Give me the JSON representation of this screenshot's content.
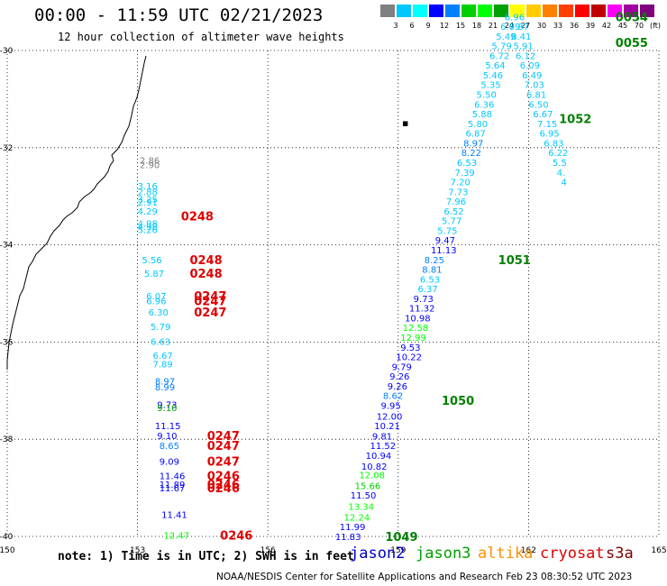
{
  "header": {
    "title": "00:00 - 11:59 UTC 02/21/2023",
    "subtitle": "12 hour collection of altimeter wave heights"
  },
  "colorbar": {
    "labels": [
      "3",
      "6",
      "9",
      "12",
      "15",
      "18",
      "21",
      "24",
      "27",
      "30",
      "33",
      "36",
      "39",
      "42",
      "45",
      "70",
      "(ft)"
    ],
    "colors": [
      "#808080",
      "#00c8ff",
      "#00ffff",
      "#0000ff",
      "#0080ff",
      "#00d000",
      "#00ff00",
      "#00a000",
      "#ffff00",
      "#ffcc00",
      "#ff8000",
      "#ff4000",
      "#ff0000",
      "#c00000",
      "#ff00ff",
      "#a000a0",
      "#800080"
    ]
  },
  "map": {
    "lon_ticks": [
      "150",
      "153",
      "156",
      "159",
      "162",
      "165"
    ],
    "lat_ticks": [
      "-30",
      "-32",
      "-34",
      "-36",
      "-38",
      "-40"
    ]
  },
  "chart_data": {
    "type": "scatter",
    "title": "00:00 - 11:59 UTC 02/21/2023",
    "subtitle": "12 hour collection of altimeter wave heights",
    "xlim": [
      150,
      165
    ],
    "ylim": [
      -40,
      -30
    ],
    "units": "(ft)",
    "points": [
      {
        "lon": 153.05,
        "lat": -32.25,
        "v": "2.86",
        "c": "#808080"
      },
      {
        "lon": 153.05,
        "lat": -32.35,
        "v": "2.90",
        "c": "#808080"
      },
      {
        "lon": 153.0,
        "lat": -32.78,
        "v": "3.16",
        "c": "#00c8ff"
      },
      {
        "lon": 153.0,
        "lat": -32.9,
        "v": "2.88",
        "c": "#00c8ff"
      },
      {
        "lon": 153.0,
        "lat": -33.05,
        "v": "3.25",
        "c": "#00c8ff"
      },
      {
        "lon": 153.0,
        "lat": -33.12,
        "v": "2.91",
        "c": "#00c8ff"
      },
      {
        "lon": 153.0,
        "lat": -33.3,
        "v": "4.29",
        "c": "#00c8ff"
      },
      {
        "lon": 153.0,
        "lat": -33.55,
        "v": "4.98",
        "c": "#00c8ff"
      },
      {
        "lon": 153.0,
        "lat": -33.62,
        "v": "4.98",
        "c": "#00c8ff"
      },
      {
        "lon": 153.0,
        "lat": -33.68,
        "v": "5.26",
        "c": "#00c8ff"
      },
      {
        "lon": 153.1,
        "lat": -34.3,
        "v": "5.56",
        "c": "#00c8ff"
      },
      {
        "lon": 153.15,
        "lat": -34.58,
        "v": "5.87",
        "c": "#00c8ff"
      },
      {
        "lon": 153.2,
        "lat": -35.05,
        "v": "6.07",
        "c": "#00c8ff"
      },
      {
        "lon": 153.2,
        "lat": -35.15,
        "v": "6.96",
        "c": "#00c8ff"
      },
      {
        "lon": 153.25,
        "lat": -35.38,
        "v": "6.30",
        "c": "#00c8ff"
      },
      {
        "lon": 153.3,
        "lat": -35.68,
        "v": "5.79",
        "c": "#00c8ff"
      },
      {
        "lon": 153.3,
        "lat": -35.98,
        "v": "6.63",
        "c": "#00c8ff"
      },
      {
        "lon": 153.35,
        "lat": -36.27,
        "v": "6.67",
        "c": "#00c8ff"
      },
      {
        "lon": 153.35,
        "lat": -36.45,
        "v": "7.89",
        "c": "#00c8ff"
      },
      {
        "lon": 153.4,
        "lat": -36.8,
        "v": "8.97",
        "c": "#0080ff"
      },
      {
        "lon": 153.4,
        "lat": -36.92,
        "v": "8.99",
        "c": "#0080ff"
      },
      {
        "lon": 153.45,
        "lat": -37.28,
        "v": "9.73",
        "c": "#0000ff"
      },
      {
        "lon": 153.45,
        "lat": -37.35,
        "v": "9.10",
        "c": "#00a000"
      },
      {
        "lon": 153.4,
        "lat": -37.72,
        "v": "11.15",
        "c": "#0000ff"
      },
      {
        "lon": 153.45,
        "lat": -37.92,
        "v": "9.10",
        "c": "#0000ff"
      },
      {
        "lon": 153.5,
        "lat": -38.13,
        "v": "8.65",
        "c": "#0080ff"
      },
      {
        "lon": 153.5,
        "lat": -38.45,
        "v": "9.09",
        "c": "#0000ff"
      },
      {
        "lon": 153.5,
        "lat": -38.75,
        "v": "11.46",
        "c": "#0000ff"
      },
      {
        "lon": 153.5,
        "lat": -38.92,
        "v": "11.89",
        "c": "#0000ff"
      },
      {
        "lon": 153.5,
        "lat": -39.0,
        "v": "11.67",
        "c": "#0000ff"
      },
      {
        "lon": 153.55,
        "lat": -39.55,
        "v": "11.41",
        "c": "#0000ff"
      },
      {
        "lon": 153.6,
        "lat": -39.97,
        "v": "12.47",
        "c": "#00ff00"
      },
      {
        "lon": 157.55,
        "lat": -40.0,
        "v": "11.83",
        "c": "#0000ff"
      },
      {
        "lon": 157.65,
        "lat": -39.8,
        "v": "11.99",
        "c": "#0000ff"
      },
      {
        "lon": 157.75,
        "lat": -39.6,
        "v": "12.24",
        "c": "#00ff00"
      },
      {
        "lon": 157.85,
        "lat": -39.38,
        "v": "13.34",
        "c": "#00ff00"
      },
      {
        "lon": 157.9,
        "lat": -39.15,
        "v": "11.50",
        "c": "#0000ff"
      },
      {
        "lon": 158.0,
        "lat": -38.95,
        "v": "15.66",
        "c": "#00d000"
      },
      {
        "lon": 158.1,
        "lat": -38.73,
        "v": "12.08",
        "c": "#00ff00"
      },
      {
        "lon": 158.15,
        "lat": -38.55,
        "v": "10.82",
        "c": "#0000ff"
      },
      {
        "lon": 158.25,
        "lat": -38.33,
        "v": "10.94",
        "c": "#0000ff"
      },
      {
        "lon": 158.35,
        "lat": -38.13,
        "v": "11.52",
        "c": "#0000ff"
      },
      {
        "lon": 158.4,
        "lat": -37.93,
        "v": "9.81",
        "c": "#0000ff"
      },
      {
        "lon": 158.45,
        "lat": -37.72,
        "v": "10.21",
        "c": "#0000ff"
      },
      {
        "lon": 158.5,
        "lat": -37.52,
        "v": "12.00",
        "c": "#0000ff"
      },
      {
        "lon": 158.6,
        "lat": -37.3,
        "v": "9.95",
        "c": "#0000ff"
      },
      {
        "lon": 158.65,
        "lat": -37.1,
        "v": "8.62",
        "c": "#0080ff"
      },
      {
        "lon": 158.75,
        "lat": -36.9,
        "v": "9.26",
        "c": "#0000ff"
      },
      {
        "lon": 158.8,
        "lat": -36.7,
        "v": "9.26",
        "c": "#0000ff"
      },
      {
        "lon": 158.85,
        "lat": -36.5,
        "v": "9.79",
        "c": "#0000ff"
      },
      {
        "lon": 158.95,
        "lat": -36.3,
        "v": "10.22",
        "c": "#0000ff"
      },
      {
        "lon": 159.05,
        "lat": -36.1,
        "v": "9.53",
        "c": "#0000ff"
      },
      {
        "lon": 159.05,
        "lat": -35.9,
        "v": "12.99",
        "c": "#00ff00"
      },
      {
        "lon": 159.1,
        "lat": -35.7,
        "v": "12.58",
        "c": "#00ff00"
      },
      {
        "lon": 159.15,
        "lat": -35.5,
        "v": "10.98",
        "c": "#0000ff"
      },
      {
        "lon": 159.25,
        "lat": -35.3,
        "v": "11.32",
        "c": "#0000ff"
      },
      {
        "lon": 159.35,
        "lat": -35.1,
        "v": "9.73",
        "c": "#0000ff"
      },
      {
        "lon": 159.45,
        "lat": -34.9,
        "v": "6.37",
        "c": "#00c8ff"
      },
      {
        "lon": 159.5,
        "lat": -34.7,
        "v": "6.53",
        "c": "#00c8ff"
      },
      {
        "lon": 159.55,
        "lat": -34.5,
        "v": "8.81",
        "c": "#0080ff"
      },
      {
        "lon": 159.6,
        "lat": -34.3,
        "v": "8.25",
        "c": "#0080ff"
      },
      {
        "lon": 159.75,
        "lat": -34.1,
        "v": "11.13",
        "c": "#0000ff"
      },
      {
        "lon": 159.85,
        "lat": -33.9,
        "v": "9.47",
        "c": "#0000ff"
      },
      {
        "lon": 159.9,
        "lat": -33.7,
        "v": "5.75",
        "c": "#00c8ff"
      },
      {
        "lon": 160.0,
        "lat": -33.5,
        "v": "5.77",
        "c": "#00c8ff"
      },
      {
        "lon": 160.05,
        "lat": -33.3,
        "v": "6.52",
        "c": "#00c8ff"
      },
      {
        "lon": 160.1,
        "lat": -33.1,
        "v": "7.96",
        "c": "#00c8ff"
      },
      {
        "lon": 160.15,
        "lat": -32.9,
        "v": "7.73",
        "c": "#00c8ff"
      },
      {
        "lon": 160.2,
        "lat": -32.7,
        "v": "7.20",
        "c": "#00c8ff"
      },
      {
        "lon": 160.3,
        "lat": -32.5,
        "v": "7.39",
        "c": "#00c8ff"
      },
      {
        "lon": 160.35,
        "lat": -32.3,
        "v": "6.53",
        "c": "#00c8ff"
      },
      {
        "lon": 160.45,
        "lat": -32.1,
        "v": "8.22",
        "c": "#0080ff"
      },
      {
        "lon": 160.5,
        "lat": -31.9,
        "v": "8.97",
        "c": "#0080ff"
      },
      {
        "lon": 160.55,
        "lat": -31.7,
        "v": "6.87",
        "c": "#00c8ff"
      },
      {
        "lon": 160.6,
        "lat": -31.5,
        "v": "5.80",
        "c": "#00c8ff"
      },
      {
        "lon": 160.7,
        "lat": -31.3,
        "v": "5.88",
        "c": "#00c8ff"
      },
      {
        "lon": 160.75,
        "lat": -31.1,
        "v": "6.36",
        "c": "#00c8ff"
      },
      {
        "lon": 160.8,
        "lat": -30.9,
        "v": "5.50",
        "c": "#00c8ff"
      },
      {
        "lon": 160.9,
        "lat": -30.7,
        "v": "5.35",
        "c": "#00c8ff"
      },
      {
        "lon": 160.95,
        "lat": -30.5,
        "v": "5.46",
        "c": "#00c8ff"
      },
      {
        "lon": 161.0,
        "lat": -30.3,
        "v": "5.64",
        "c": "#00c8ff"
      },
      {
        "lon": 161.1,
        "lat": -30.1,
        "v": "6.72",
        "c": "#00c8ff"
      },
      {
        "lon": 161.15,
        "lat": -29.9,
        "v": "5.79",
        "c": "#00c8ff"
      },
      {
        "lon": 161.25,
        "lat": -29.7,
        "v": "5.49",
        "c": "#00c8ff"
      },
      {
        "lon": 161.35,
        "lat": -29.5,
        "v": "6.09",
        "c": "#00c8ff"
      },
      {
        "lon": 161.45,
        "lat": -29.3,
        "v": "6.96",
        "c": "#00c8ff"
      },
      {
        "lon": 161.55,
        "lat": -29.5,
        "v": "7.87",
        "c": "#00c8ff"
      },
      {
        "lon": 161.6,
        "lat": -29.7,
        "v": "8.41",
        "c": "#00c8ff"
      },
      {
        "lon": 161.65,
        "lat": -29.9,
        "v": "5.91",
        "c": "#00c8ff"
      },
      {
        "lon": 161.7,
        "lat": -30.1,
        "v": "6.12",
        "c": "#00c8ff"
      },
      {
        "lon": 161.8,
        "lat": -30.3,
        "v": "6.09",
        "c": "#00c8ff"
      },
      {
        "lon": 161.85,
        "lat": -30.5,
        "v": "6.49",
        "c": "#00c8ff"
      },
      {
        "lon": 161.9,
        "lat": -30.7,
        "v": "7.03",
        "c": "#00c8ff"
      },
      {
        "lon": 161.95,
        "lat": -30.9,
        "v": "6.81",
        "c": "#00c8ff"
      },
      {
        "lon": 162.0,
        "lat": -31.1,
        "v": "6.50",
        "c": "#00c8ff"
      },
      {
        "lon": 162.1,
        "lat": -31.3,
        "v": "6.67",
        "c": "#00c8ff"
      },
      {
        "lon": 162.2,
        "lat": -31.5,
        "v": "7.15",
        "c": "#00c8ff"
      },
      {
        "lon": 162.25,
        "lat": -31.7,
        "v": "6.95",
        "c": "#00c8ff"
      },
      {
        "lon": 162.35,
        "lat": -31.9,
        "v": "6.83",
        "c": "#00c8ff"
      },
      {
        "lon": 162.45,
        "lat": -32.1,
        "v": "6.22",
        "c": "#00c8ff"
      },
      {
        "lon": 162.55,
        "lat": -32.3,
        "v": "5.5",
        "c": "#00c8ff"
      },
      {
        "lon": 162.65,
        "lat": -32.5,
        "v": "4.",
        "c": "#00c8ff"
      },
      {
        "lon": 162.75,
        "lat": -32.7,
        "v": "4",
        "c": "#00c8ff"
      }
    ],
    "time_labels": [
      {
        "lon": 154.0,
        "lat": -33.4,
        "text": "0248",
        "c": "#e00000"
      },
      {
        "lon": 154.2,
        "lat": -34.3,
        "text": "0248",
        "c": "#e00000"
      },
      {
        "lon": 154.2,
        "lat": -34.58,
        "text": "0248",
        "c": "#e00000"
      },
      {
        "lon": 154.3,
        "lat": -35.05,
        "text": "0247",
        "c": "#e00000"
      },
      {
        "lon": 154.3,
        "lat": -35.15,
        "text": "0247",
        "c": "#e00000"
      },
      {
        "lon": 154.3,
        "lat": -35.38,
        "text": "0247",
        "c": "#e00000"
      },
      {
        "lon": 154.6,
        "lat": -37.92,
        "text": "0247",
        "c": "#e00000"
      },
      {
        "lon": 154.6,
        "lat": -38.13,
        "text": "0247",
        "c": "#e00000"
      },
      {
        "lon": 154.6,
        "lat": -38.45,
        "text": "0247",
        "c": "#e00000"
      },
      {
        "lon": 154.6,
        "lat": -38.75,
        "text": "0246",
        "c": "#e00000"
      },
      {
        "lon": 154.6,
        "lat": -38.92,
        "text": "0246",
        "c": "#e00000"
      },
      {
        "lon": 154.6,
        "lat": -39.0,
        "text": "0246",
        "c": "#e00000"
      },
      {
        "lon": 154.9,
        "lat": -39.97,
        "text": "0246",
        "c": "#e00000"
      },
      {
        "lon": 158.7,
        "lat": -40.0,
        "text": "1049",
        "c": "#008000"
      },
      {
        "lon": 160.0,
        "lat": -37.2,
        "text": "1050",
        "c": "#008000"
      },
      {
        "lon": 161.3,
        "lat": -34.3,
        "text": "1051",
        "c": "#008000"
      },
      {
        "lon": 162.7,
        "lat": -31.4,
        "text": "1052",
        "c": "#008000"
      },
      {
        "lon": 164.0,
        "lat": -29.3,
        "text": "0054",
        "c": "#008000"
      },
      {
        "lon": 164.0,
        "lat": -29.83,
        "text": "0055",
        "c": "#008000"
      }
    ]
  },
  "footer": {
    "note": "note: 1) Time is in UTC; 2) SWH is in feet",
    "legend": [
      {
        "label": "jason2",
        "color": "#0000c8"
      },
      {
        "label": "jason3",
        "color": "#00a000"
      },
      {
        "label": "altika",
        "color": "#ff9000"
      },
      {
        "label": "cryosat",
        "color": "#e00000"
      },
      {
        "label": "s3a",
        "color": "#800000"
      }
    ],
    "credit": "NOAA/NESDIS Center for Satellite Applications and Research    Feb 23 08:30:52 UTC 2023"
  }
}
